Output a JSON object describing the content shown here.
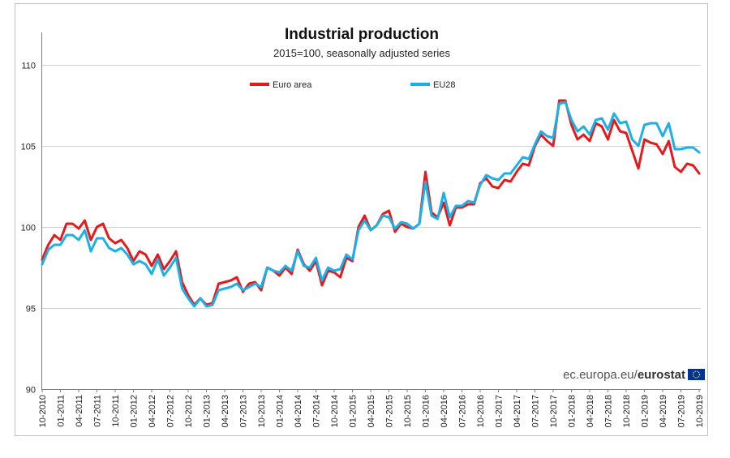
{
  "chart_data": {
    "type": "line",
    "title": "Industrial production",
    "subtitle": "2015=100, seasonally adjusted series",
    "xlabel": "",
    "ylabel": "",
    "ylim": [
      90,
      112
    ],
    "yticks": [
      90,
      95,
      100,
      105,
      110
    ],
    "grid": true,
    "legend_placement": "top",
    "source": "ec.europa.eu/eurostat",
    "source_prefix": "ec.europa.eu/",
    "source_brand": "eurostat",
    "x_tick_labels": [
      "10-2010",
      "01-2011",
      "04-2011",
      "07-2011",
      "10-2011",
      "01-2012",
      "04-2012",
      "07-2012",
      "10-2012",
      "01-2013",
      "04-2013",
      "07-2013",
      "10-2013",
      "01-2014",
      "04-2014",
      "07-2014",
      "10-2014",
      "01-2015",
      "04-2015",
      "07-2015",
      "10-2015",
      "01-2016",
      "04-2016",
      "07-2016",
      "10-2016",
      "01-2017",
      "04-2017",
      "07-2017",
      "10-2017",
      "01-2018",
      "04-2018",
      "07-2018",
      "10-2018",
      "01-2019",
      "04-2019",
      "07-2019",
      "10-2019"
    ],
    "x": [
      "10-2010",
      "11-2010",
      "12-2010",
      "01-2011",
      "02-2011",
      "03-2011",
      "04-2011",
      "05-2011",
      "06-2011",
      "07-2011",
      "08-2011",
      "09-2011",
      "10-2011",
      "11-2011",
      "12-2011",
      "01-2012",
      "02-2012",
      "03-2012",
      "04-2012",
      "05-2012",
      "06-2012",
      "07-2012",
      "08-2012",
      "09-2012",
      "10-2012",
      "11-2012",
      "12-2012",
      "01-2013",
      "02-2013",
      "03-2013",
      "04-2013",
      "05-2013",
      "06-2013",
      "07-2013",
      "08-2013",
      "09-2013",
      "10-2013",
      "11-2013",
      "12-2013",
      "01-2014",
      "02-2014",
      "03-2014",
      "04-2014",
      "05-2014",
      "06-2014",
      "07-2014",
      "08-2014",
      "09-2014",
      "10-2014",
      "11-2014",
      "12-2014",
      "01-2015",
      "02-2015",
      "03-2015",
      "04-2015",
      "05-2015",
      "06-2015",
      "07-2015",
      "08-2015",
      "09-2015",
      "10-2015",
      "11-2015",
      "12-2015",
      "01-2016",
      "02-2016",
      "03-2016",
      "04-2016",
      "05-2016",
      "06-2016",
      "07-2016",
      "08-2016",
      "09-2016",
      "10-2016",
      "11-2016",
      "12-2016",
      "01-2017",
      "02-2017",
      "03-2017",
      "04-2017",
      "05-2017",
      "06-2017",
      "07-2017",
      "08-2017",
      "09-2017",
      "10-2017",
      "11-2017",
      "12-2017",
      "01-2018",
      "02-2018",
      "03-2018",
      "04-2018",
      "05-2018",
      "06-2018",
      "07-2018",
      "08-2018",
      "09-2018",
      "10-2018",
      "11-2018",
      "12-2018",
      "01-2019",
      "02-2019",
      "03-2019",
      "04-2019",
      "05-2019",
      "06-2019",
      "07-2019",
      "08-2019",
      "09-2019",
      "10-2019"
    ],
    "series": [
      {
        "name": "Euro area",
        "color": "#e41a1c",
        "values": [
          98.0,
          98.9,
          99.5,
          99.2,
          100.2,
          100.2,
          99.9,
          100.4,
          99.2,
          100.0,
          100.2,
          99.3,
          99.0,
          99.2,
          98.7,
          97.9,
          98.5,
          98.3,
          97.6,
          98.3,
          97.4,
          97.9,
          98.5,
          96.6,
          95.8,
          95.2,
          95.6,
          95.2,
          95.3,
          96.5,
          96.6,
          96.7,
          96.9,
          96.0,
          96.5,
          96.6,
          96.1,
          97.5,
          97.3,
          97.0,
          97.5,
          97.1,
          98.6,
          97.7,
          97.3,
          97.9,
          96.4,
          97.3,
          97.2,
          96.9,
          98.1,
          97.9,
          100.0,
          100.7,
          99.8,
          100.1,
          100.8,
          101.0,
          99.7,
          100.2,
          100.0,
          99.9,
          100.2,
          103.4,
          100.9,
          100.6,
          101.5,
          100.1,
          101.2,
          101.2,
          101.4,
          101.4,
          102.7,
          103.0,
          102.5,
          102.4,
          102.9,
          102.8,
          103.4,
          103.9,
          103.8,
          105.0,
          105.7,
          105.3,
          105.0,
          107.8,
          107.8,
          106.3,
          105.4,
          105.7,
          105.3,
          106.4,
          106.2,
          105.4,
          106.6,
          105.9,
          105.8,
          104.7,
          103.6,
          105.4,
          105.2,
          105.1,
          104.5,
          105.3,
          103.7,
          103.4,
          103.9,
          103.8,
          103.3
        ]
      },
      {
        "name": "EU28",
        "color": "#1ab0e8",
        "values": [
          97.7,
          98.6,
          98.9,
          98.9,
          99.5,
          99.5,
          99.2,
          99.8,
          98.5,
          99.3,
          99.3,
          98.7,
          98.5,
          98.7,
          98.3,
          97.7,
          97.9,
          97.7,
          97.1,
          98.0,
          97.0,
          97.5,
          98.1,
          96.2,
          95.6,
          95.1,
          95.6,
          95.1,
          95.2,
          96.1,
          96.2,
          96.3,
          96.5,
          96.1,
          96.3,
          96.5,
          96.3,
          97.5,
          97.3,
          97.2,
          97.6,
          97.3,
          98.5,
          97.6,
          97.5,
          98.1,
          96.7,
          97.5,
          97.3,
          97.4,
          98.3,
          98.0,
          99.8,
          100.4,
          99.8,
          100.1,
          100.7,
          100.6,
          99.9,
          100.3,
          100.2,
          99.9,
          100.2,
          102.8,
          100.7,
          100.5,
          102.1,
          100.6,
          101.3,
          101.3,
          101.6,
          101.5,
          102.6,
          103.2,
          103.0,
          102.9,
          103.3,
          103.3,
          103.8,
          104.3,
          104.2,
          105.1,
          105.9,
          105.6,
          105.5,
          107.6,
          107.7,
          106.6,
          105.9,
          106.2,
          105.7,
          106.6,
          106.7,
          106.0,
          107.0,
          106.4,
          106.5,
          105.4,
          105.0,
          106.3,
          106.4,
          106.4,
          105.6,
          106.4,
          104.8,
          104.8,
          104.9,
          104.9,
          104.6
        ]
      }
    ]
  }
}
